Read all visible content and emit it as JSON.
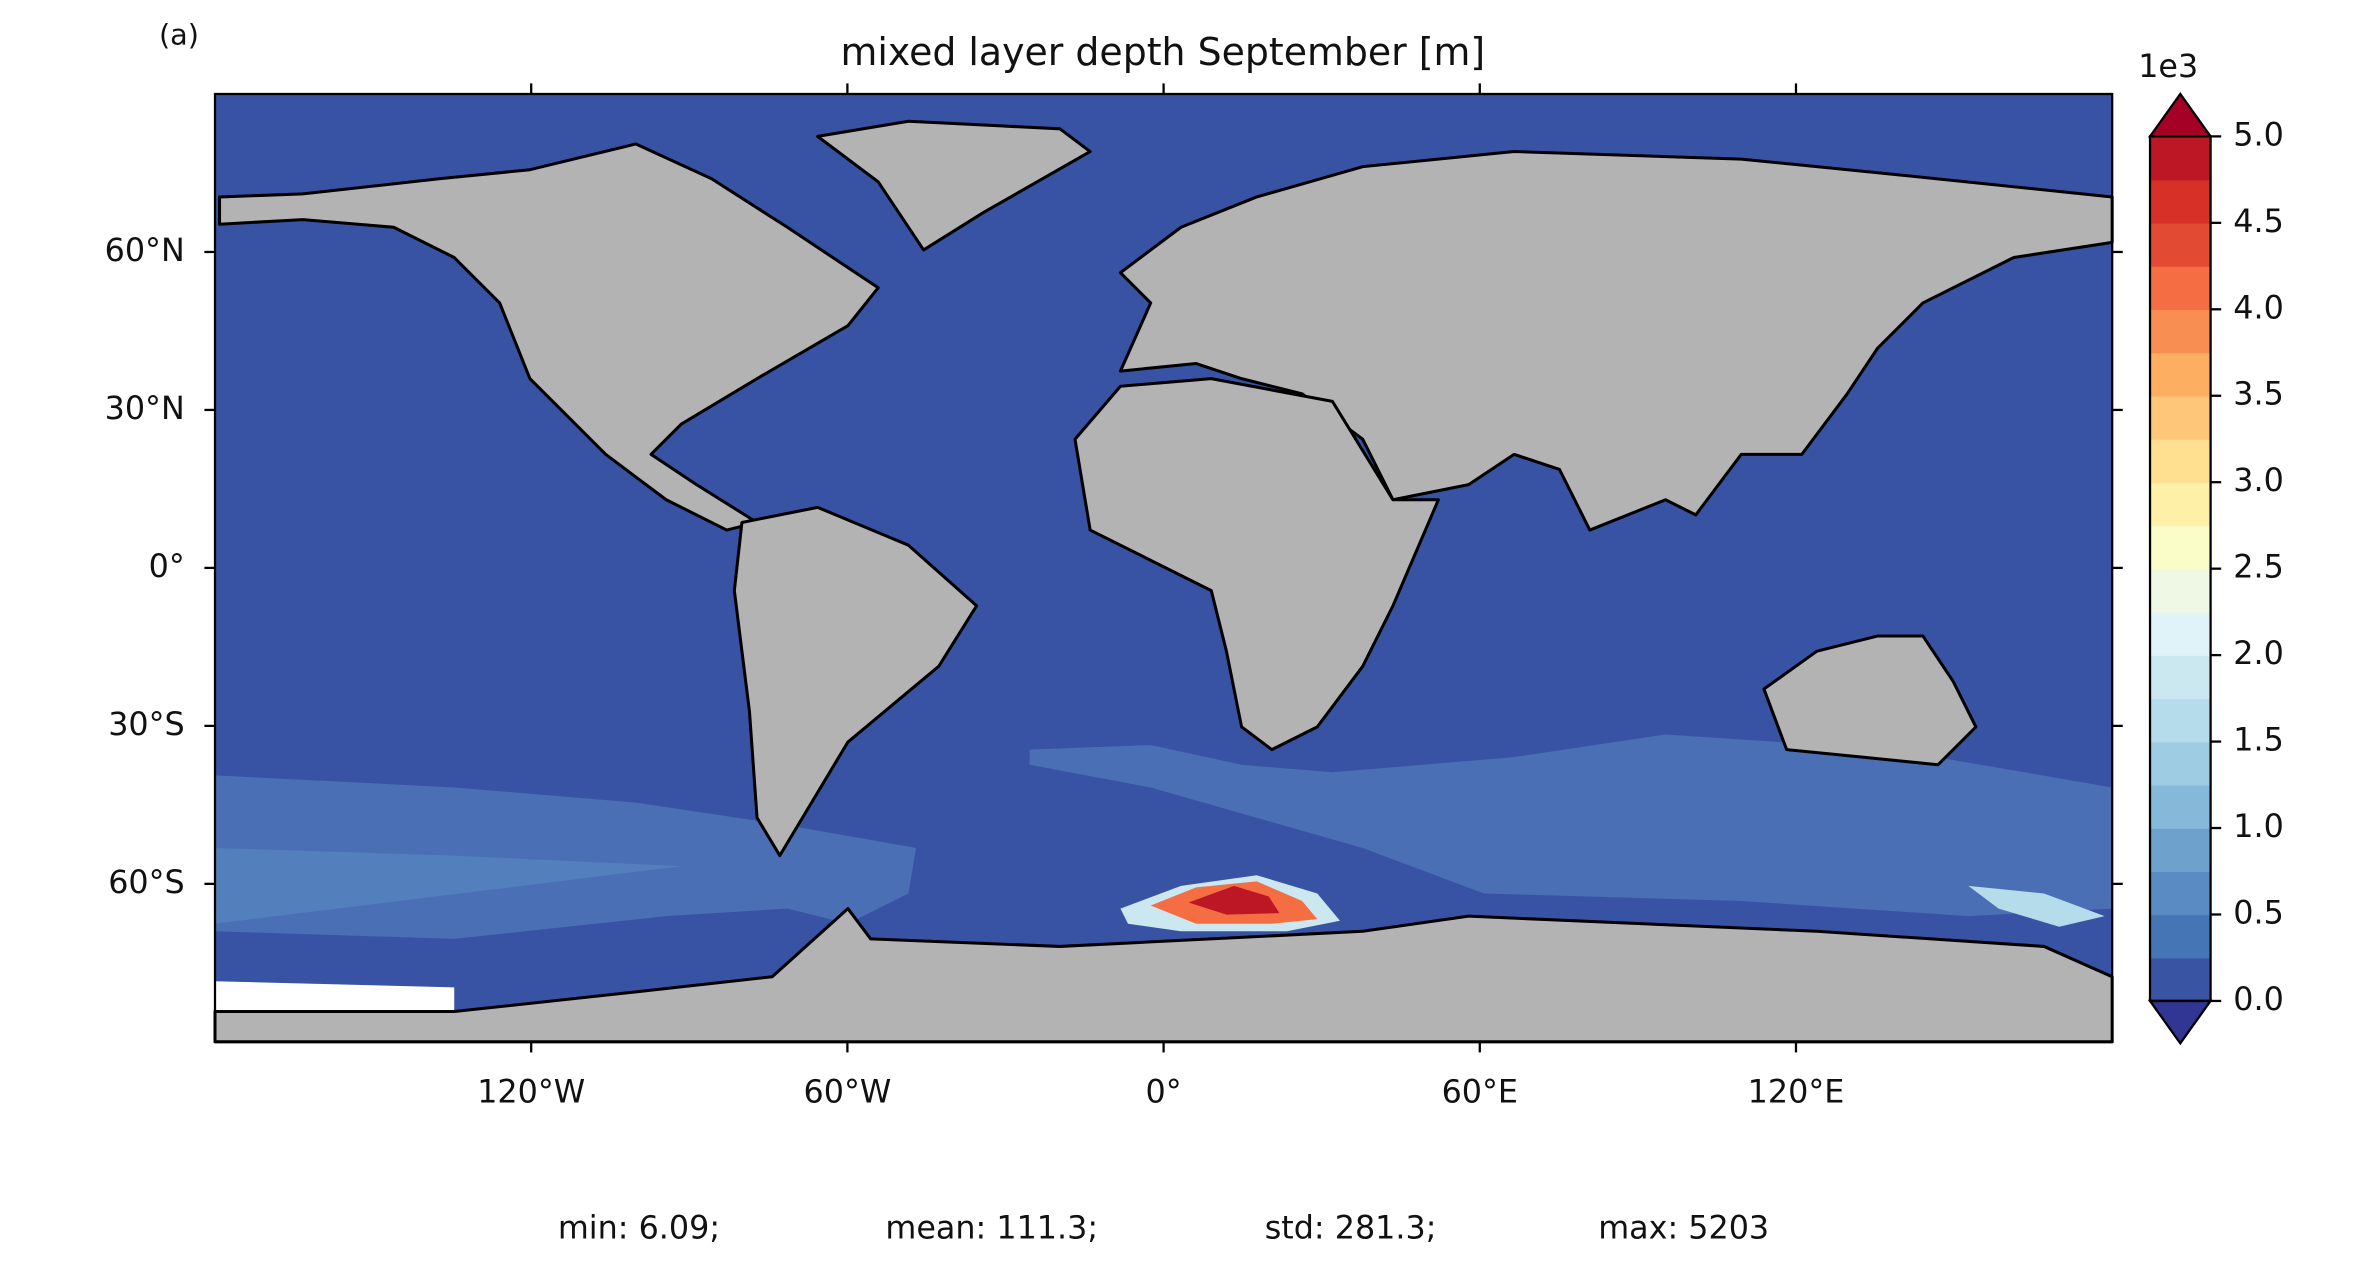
{
  "panel_label": "(a)",
  "chart_data": {
    "type": "map",
    "title": "mixed layer depth September [m]",
    "xlim": [
      -180,
      180
    ],
    "ylim": [
      -90,
      90
    ],
    "xticks": [
      {
        "value": -120,
        "label": "120°W"
      },
      {
        "value": -60,
        "label": "60°W"
      },
      {
        "value": 0,
        "label": "0°"
      },
      {
        "value": 60,
        "label": "60°E"
      },
      {
        "value": 120,
        "label": "120°E"
      }
    ],
    "yticks": [
      {
        "value": 60,
        "label": "60°N"
      },
      {
        "value": 30,
        "label": "30°N"
      },
      {
        "value": 0,
        "label": "0°"
      },
      {
        "value": -30,
        "label": "30°S"
      },
      {
        "value": -60,
        "label": "60°S"
      }
    ],
    "colorbar": {
      "lim": [
        0,
        5
      ],
      "offset_label": "1e3",
      "ticks": [
        {
          "value": 0,
          "label": "0.0"
        },
        0.5,
        {
          "value": 1,
          "label": "1.0"
        },
        1.5,
        {
          "value": 2,
          "label": "2.0"
        },
        2.5,
        {
          "value": 3,
          "label": "3.0"
        },
        3.5,
        {
          "value": 4,
          "label": "4.0"
        },
        4.5,
        {
          "value": 5,
          "label": "5.0"
        }
      ],
      "colors": [
        "#3a54a4",
        "#4575b4",
        "#5a8bc2",
        "#6fa1cd",
        "#86b9d9",
        "#9ecde3",
        "#b5dcea",
        "#cbe8f1",
        "#e0f3f8",
        "#eef8e4",
        "#fbfdc8",
        "#fff0a8",
        "#fee090",
        "#fdc679",
        "#fdae61",
        "#f88e52",
        "#f46d43",
        "#e34a33",
        "#d73027",
        "#bd1726"
      ],
      "under_color": "#313695",
      "over_color": "#a50026"
    },
    "stats": [
      "min: 6.09;",
      "mean: 111.3;",
      "std: 281.3;",
      "max: 5203"
    ]
  }
}
